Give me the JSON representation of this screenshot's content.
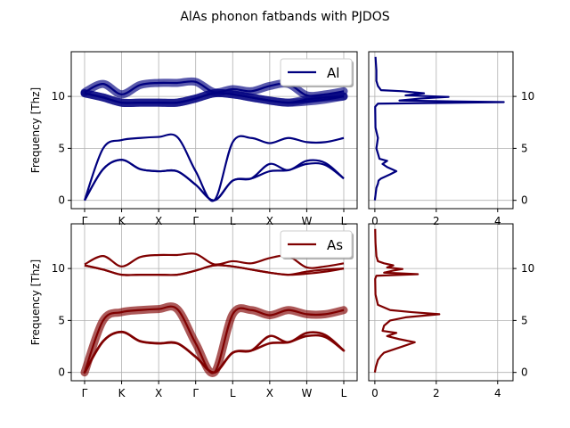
{
  "figure": {
    "title": "AlAs phonon fatbands with PJDOS"
  },
  "chart_data": [
    {
      "type": "line",
      "panel": "bands-Al",
      "ylabel": "Frequency [Thz]",
      "ylim": [
        -0.8,
        14.3
      ],
      "yticks": [
        0,
        5,
        10
      ],
      "x_ticks": [
        "Γ",
        "K",
        "X",
        "Γ",
        "L",
        "X",
        "W",
        "L"
      ],
      "legend": {
        "label": "Al",
        "position": "top-right"
      },
      "color": "#00007f",
      "grid": true,
      "series": [
        {
          "values": [
            0,
            3.0,
            3.9,
            3.0,
            2.8,
            2.8,
            1.5,
            0,
            1.9,
            2.1,
            2.8,
            2.9,
            3.5,
            3.4,
            2.1
          ],
          "fat": 0.0
        },
        {
          "values": [
            0,
            3.0,
            3.9,
            3.0,
            2.8,
            2.8,
            1.5,
            0,
            1.9,
            2.1,
            3.5,
            2.9,
            3.8,
            3.6,
            2.1
          ],
          "fat": 0.0
        },
        {
          "values": [
            0,
            5.0,
            5.8,
            6.0,
            6.1,
            6.1,
            2.8,
            0,
            5.6,
            6.0,
            5.5,
            6.0,
            5.6,
            5.6,
            6.0
          ],
          "fat": 0.0
        },
        {
          "values": [
            10.3,
            9.9,
            9.4,
            9.4,
            9.4,
            9.4,
            9.8,
            10.3,
            10.2,
            9.9,
            9.6,
            9.4,
            9.5,
            9.7,
            10.0
          ],
          "fat": 1.0
        },
        {
          "values": [
            10.3,
            9.9,
            9.4,
            9.4,
            9.4,
            9.4,
            9.8,
            10.3,
            10.2,
            9.9,
            9.6,
            9.4,
            9.7,
            9.9,
            10.0
          ],
          "fat": 1.0
        },
        {
          "values": [
            10.4,
            11.2,
            10.2,
            11.1,
            11.3,
            11.3,
            11.4,
            10.4,
            10.7,
            10.5,
            11.0,
            11.2,
            10.1,
            10.2,
            10.5
          ],
          "fat": 1.0
        }
      ]
    },
    {
      "type": "line",
      "panel": "dos-Al",
      "ylim": [
        -0.8,
        14.3
      ],
      "xlim": [
        -0.2,
        4.5
      ],
      "xticks": [
        0,
        2,
        4
      ],
      "yticks": [
        0,
        5,
        10
      ],
      "color": "#00007f",
      "grid": true,
      "series": [
        {
          "points": [
            [
              0.0,
              0.0
            ],
            [
              0.02,
              0.5
            ],
            [
              0.05,
              1.2
            ],
            [
              0.1,
              1.6
            ],
            [
              0.12,
              1.9
            ],
            [
              0.2,
              2.1
            ],
            [
              0.5,
              2.5
            ],
            [
              0.7,
              2.8
            ],
            [
              0.4,
              3.2
            ],
            [
              0.25,
              3.5
            ],
            [
              0.4,
              3.8
            ],
            [
              0.15,
              4.0
            ],
            [
              0.1,
              4.5
            ],
            [
              0.05,
              5.0
            ],
            [
              0.08,
              5.6
            ],
            [
              0.1,
              6.0
            ],
            [
              0.02,
              7.0
            ],
            [
              0.01,
              9.0
            ],
            [
              0.1,
              9.3
            ],
            [
              4.2,
              9.45
            ],
            [
              0.8,
              9.6
            ],
            [
              1.5,
              9.8
            ],
            [
              2.4,
              9.95
            ],
            [
              1.0,
              10.1
            ],
            [
              1.6,
              10.3
            ],
            [
              0.9,
              10.5
            ],
            [
              0.2,
              10.6
            ],
            [
              0.1,
              11.0
            ],
            [
              0.05,
              11.5
            ],
            [
              0.05,
              12.5
            ],
            [
              0.02,
              13.8
            ]
          ]
        }
      ]
    },
    {
      "type": "line",
      "panel": "bands-As",
      "ylabel": "Frequency [Thz]",
      "ylim": [
        -0.8,
        14.3
      ],
      "yticks": [
        0,
        5,
        10
      ],
      "x_ticks": [
        "Γ",
        "K",
        "X",
        "Γ",
        "L",
        "X",
        "W",
        "L"
      ],
      "legend": {
        "label": "As",
        "position": "top-right"
      },
      "color": "#7f0000",
      "grid": true,
      "series": [
        {
          "values": [
            0,
            3.0,
            3.9,
            3.0,
            2.8,
            2.8,
            1.5,
            0,
            1.9,
            2.1,
            2.8,
            2.9,
            3.5,
            3.4,
            2.1
          ],
          "fat": 0.1
        },
        {
          "values": [
            0,
            3.0,
            3.9,
            3.0,
            2.8,
            2.8,
            1.5,
            0,
            1.9,
            2.1,
            3.5,
            2.9,
            3.8,
            3.6,
            2.1
          ],
          "fat": 0.1
        },
        {
          "values": [
            0,
            5.0,
            5.8,
            6.0,
            6.1,
            6.1,
            2.8,
            0,
            5.6,
            6.0,
            5.5,
            6.0,
            5.6,
            5.6,
            6.0
          ],
          "fat": 1.0
        },
        {
          "values": [
            10.3,
            9.9,
            9.4,
            9.4,
            9.4,
            9.4,
            9.8,
            10.3,
            10.2,
            9.9,
            9.6,
            9.4,
            9.5,
            9.7,
            10.0
          ],
          "fat": 0.0
        },
        {
          "values": [
            10.3,
            9.9,
            9.4,
            9.4,
            9.4,
            9.4,
            9.8,
            10.3,
            10.2,
            9.9,
            9.6,
            9.4,
            9.7,
            9.9,
            10.0
          ],
          "fat": 0.0
        },
        {
          "values": [
            10.4,
            11.2,
            10.2,
            11.1,
            11.3,
            11.3,
            11.4,
            10.4,
            10.7,
            10.5,
            11.0,
            11.2,
            10.1,
            10.2,
            10.5
          ],
          "fat": 0.0
        }
      ]
    },
    {
      "type": "line",
      "panel": "dos-As",
      "ylim": [
        -0.8,
        14.3
      ],
      "xlim": [
        -0.2,
        4.5
      ],
      "xticks": [
        0,
        2,
        4
      ],
      "yticks": [
        0,
        5,
        10
      ],
      "color": "#7f0000",
      "grid": true,
      "series": [
        {
          "points": [
            [
              0.0,
              0.0
            ],
            [
              0.03,
              0.5
            ],
            [
              0.1,
              1.2
            ],
            [
              0.2,
              1.6
            ],
            [
              0.3,
              1.9
            ],
            [
              0.5,
              2.1
            ],
            [
              0.9,
              2.5
            ],
            [
              1.3,
              2.9
            ],
            [
              0.8,
              3.2
            ],
            [
              0.4,
              3.5
            ],
            [
              0.7,
              3.8
            ],
            [
              0.25,
              4.0
            ],
            [
              0.3,
              4.5
            ],
            [
              0.5,
              5.0
            ],
            [
              1.0,
              5.3
            ],
            [
              2.1,
              5.6
            ],
            [
              1.2,
              5.8
            ],
            [
              0.5,
              6.0
            ],
            [
              0.1,
              6.5
            ],
            [
              0.02,
              7.5
            ],
            [
              0.01,
              9.0
            ],
            [
              0.05,
              9.3
            ],
            [
              1.4,
              9.45
            ],
            [
              0.3,
              9.6
            ],
            [
              0.6,
              9.8
            ],
            [
              0.9,
              9.95
            ],
            [
              0.4,
              10.1
            ],
            [
              0.6,
              10.3
            ],
            [
              0.3,
              10.5
            ],
            [
              0.1,
              10.7
            ],
            [
              0.05,
              11.2
            ],
            [
              0.02,
              12.5
            ],
            [
              0.01,
              13.8
            ]
          ]
        }
      ]
    }
  ]
}
